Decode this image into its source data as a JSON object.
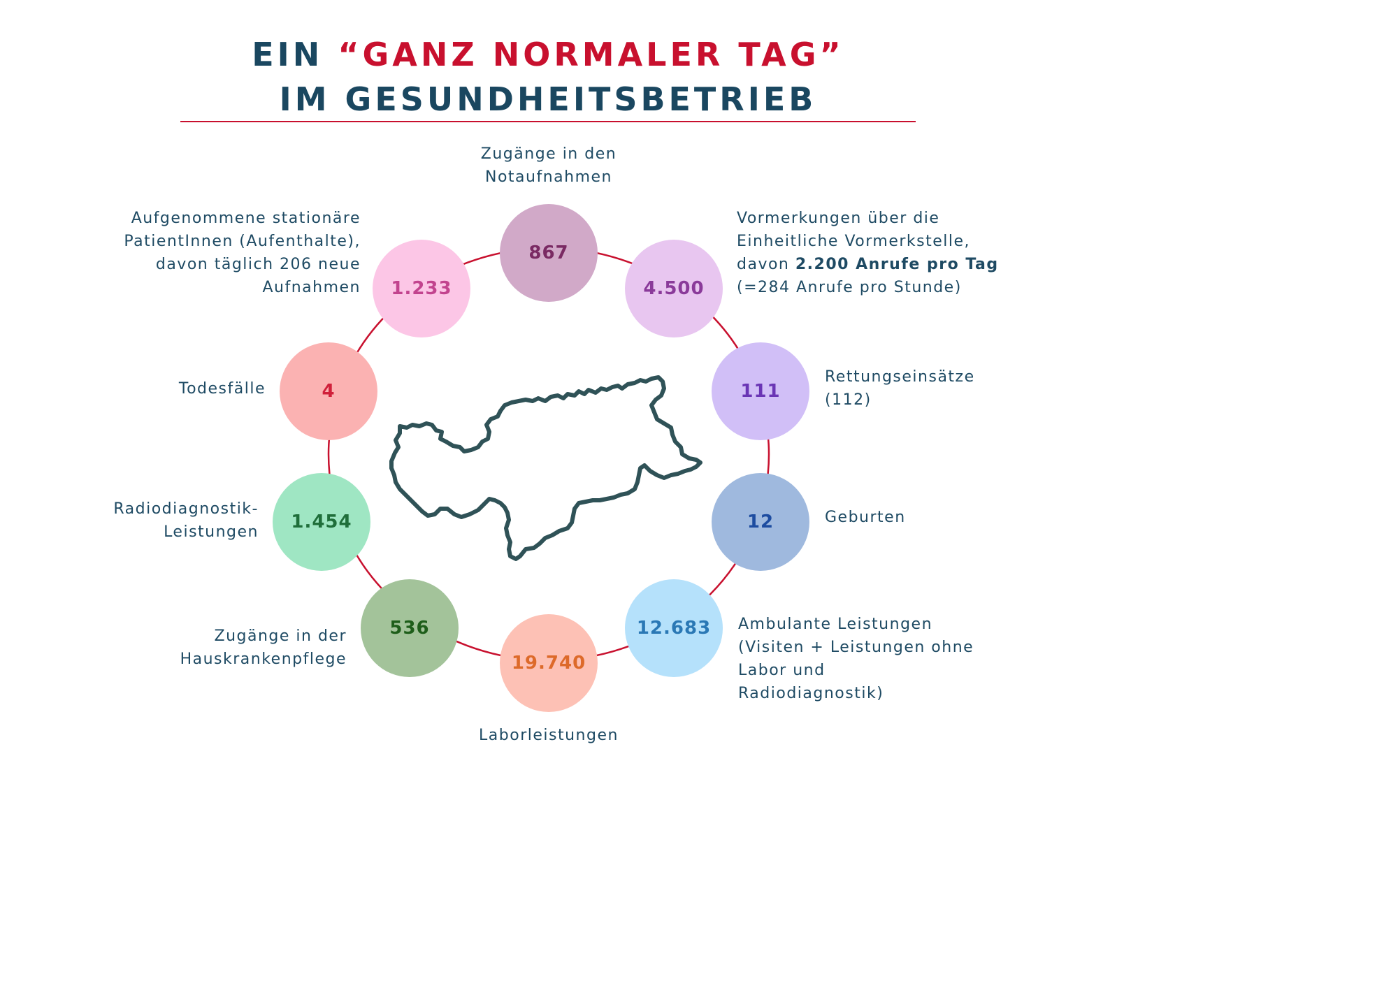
{
  "title": {
    "line1_prefix": "EIN ",
    "line1_highlight": "“GANZ NORMALER TAG”",
    "line2": "IM GESUNDHEITSBETRIEB"
  },
  "colors": {
    "title": "#1a4760",
    "accent_red": "#c8102e",
    "ring_line": "#c8102e",
    "map_outline": "#2f5257"
  },
  "stats": [
    {
      "id": "notaufnahmen",
      "value": "867",
      "label_lines": [
        "Zugänge in den",
        "Notaufnahmen"
      ],
      "bubble_color": "#d1a9c8",
      "value_color": "#7a2a63"
    },
    {
      "id": "vormerkungen",
      "value": "4.500",
      "label_lines": [
        "Vormerkungen über die",
        "Einheitliche Vormerkstelle,",
        "davon ",
        "2.200 Anrufe pro Tag",
        "(=284 Anrufe pro Stunde)"
      ],
      "bubble_color": "#e8c6f0",
      "value_color": "#8a3a9a"
    },
    {
      "id": "rettung",
      "value": "111",
      "label_lines": [
        "Rettungseinsätze",
        "(112)"
      ],
      "bubble_color": "#d1bff7",
      "value_color": "#6a35b5"
    },
    {
      "id": "geburten",
      "value": "12",
      "label_lines": [
        "Geburten"
      ],
      "bubble_color": "#9fb9de",
      "value_color": "#1d4ca0"
    },
    {
      "id": "ambulant",
      "value": "12.683",
      "label_lines": [
        "Ambulante Leistungen",
        "(Visiten + Leistungen ohne",
        "Labor und",
        "Radiodiagnostik)"
      ],
      "bubble_color": "#b5e1fb",
      "value_color": "#2a78b5"
    },
    {
      "id": "labor",
      "value": "19.740",
      "label_lines": [
        "Laborleistungen"
      ],
      "bubble_color": "#fdc1b5",
      "value_color": "#dd6a2a"
    },
    {
      "id": "hauskranken",
      "value": "536",
      "label_lines": [
        "Zugänge in der",
        "Hauskrankenpflege"
      ],
      "bubble_color": "#a3c39a",
      "value_color": "#1e5e1a"
    },
    {
      "id": "radio",
      "value": "1.454",
      "label_lines": [
        "Radiodiagnostik-",
        "Leistungen"
      ],
      "bubble_color": "#9fe6c3",
      "value_color": "#1f6e3a"
    },
    {
      "id": "todesfaelle",
      "value": "4",
      "label_lines": [
        "Todesfälle"
      ],
      "bubble_color": "#fbb2b2",
      "value_color": "#d0203a"
    },
    {
      "id": "stationaer",
      "value": "1.233",
      "label_lines": [
        "Aufgenommene stationäre",
        "PatientInnen (Aufenthalte),",
        "davon täglich 206 neue",
        "Aufnahmen"
      ],
      "bubble_color": "#fcc6e6",
      "value_color": "#c2438e"
    }
  ]
}
